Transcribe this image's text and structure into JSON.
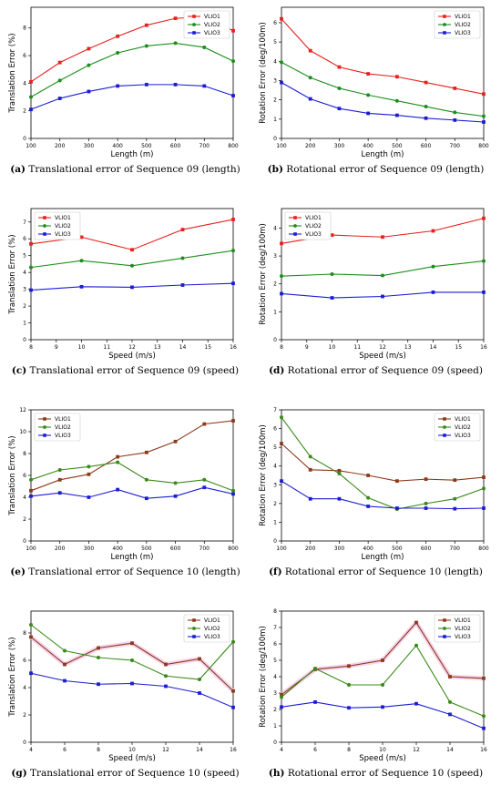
{
  "colors": {
    "set_a": [
      "#e8201f",
      "#1c8f1c",
      "#1c1cd6"
    ],
    "set_b": [
      "#8b3a1a",
      "#3a8a1a",
      "#1c1cd6"
    ],
    "highlight": "#f3c6e6"
  },
  "chart_data": [
    {
      "type": "line",
      "caption_letter": "(a)",
      "caption_text": " Translational error of Sequence 09 (length)",
      "xlabel": "Length (m)",
      "ylabel": "Translation Error (%)",
      "x": [
        100,
        200,
        300,
        400,
        500,
        600,
        700,
        800
      ],
      "xlim": [
        100,
        800
      ],
      "ylim": [
        0,
        9.5
      ],
      "xticks": [
        100,
        200,
        300,
        400,
        500,
        600,
        700,
        800
      ],
      "yticks": [
        0,
        2,
        4,
        6,
        8
      ],
      "legend": "top-right",
      "palette": "set_a",
      "series": [
        {
          "name": "VLIO1",
          "values": [
            4.1,
            5.5,
            6.5,
            7.4,
            8.2,
            8.7,
            8.8,
            7.8
          ]
        },
        {
          "name": "VLIO2",
          "values": [
            3.0,
            4.2,
            5.3,
            6.2,
            6.7,
            6.9,
            6.6,
            5.6
          ]
        },
        {
          "name": "VLIO3",
          "values": [
            2.1,
            2.9,
            3.4,
            3.8,
            3.9,
            3.9,
            3.8,
            3.1
          ]
        }
      ]
    },
    {
      "type": "line",
      "caption_letter": "(b)",
      "caption_text": " Rotational error of Sequence 09 (length)",
      "xlabel": "Length (m)",
      "ylabel": "Rotation Error (deg/100m)",
      "x": [
        100,
        200,
        300,
        400,
        500,
        600,
        700,
        800
      ],
      "xlim": [
        100,
        800
      ],
      "ylim": [
        0,
        6.8
      ],
      "xticks": [
        100,
        200,
        300,
        400,
        500,
        600,
        700,
        800
      ],
      "yticks": [
        0,
        1,
        2,
        3,
        4,
        5,
        6
      ],
      "legend": "top-right",
      "palette": "set_a",
      "series": [
        {
          "name": "VLIO1",
          "values": [
            6.2,
            4.55,
            3.7,
            3.35,
            3.2,
            2.9,
            2.6,
            2.3
          ]
        },
        {
          "name": "VLIO2",
          "values": [
            3.95,
            3.15,
            2.6,
            2.25,
            1.95,
            1.65,
            1.35,
            1.15
          ]
        },
        {
          "name": "VLIO3",
          "values": [
            2.9,
            2.05,
            1.55,
            1.3,
            1.2,
            1.05,
            0.95,
            0.85
          ]
        }
      ]
    },
    {
      "type": "line",
      "caption_letter": "(c)",
      "caption_text": " Translational error of Sequence 09 (speed)",
      "xlabel": "Speed (m/s)",
      "ylabel": "Translation Error (%)",
      "x": [
        8,
        10,
        12,
        14,
        16
      ],
      "xlim": [
        8,
        16
      ],
      "ylim": [
        0,
        7.8
      ],
      "xticks": [
        8,
        9,
        10,
        11,
        12,
        13,
        14,
        15,
        16
      ],
      "yticks": [
        0,
        1,
        2,
        3,
        4,
        5,
        6,
        7
      ],
      "legend": "top-left",
      "palette": "set_a",
      "series": [
        {
          "name": "VLIO1",
          "values": [
            5.7,
            6.1,
            5.35,
            6.55,
            7.15
          ]
        },
        {
          "name": "VLIO2",
          "values": [
            4.3,
            4.7,
            4.4,
            4.85,
            5.3
          ]
        },
        {
          "name": "VLIO3",
          "values": [
            2.95,
            3.15,
            3.12,
            3.25,
            3.35
          ]
        }
      ]
    },
    {
      "type": "line",
      "caption_letter": "(d)",
      "caption_text": " Rotational error of Sequence 09 (speed)",
      "xlabel": "Speed (m/s)",
      "ylabel": "Rotation Error (deg/100m)",
      "x": [
        8,
        10,
        12,
        14,
        16
      ],
      "xlim": [
        8,
        16
      ],
      "ylim": [
        0,
        4.7
      ],
      "xticks": [
        8,
        9,
        10,
        11,
        12,
        13,
        14,
        15,
        16
      ],
      "yticks": [
        0,
        1,
        2,
        3,
        4
      ],
      "legend": "top-left",
      "palette": "set_a",
      "series": [
        {
          "name": "VLIO1",
          "values": [
            3.45,
            3.75,
            3.68,
            3.9,
            4.35
          ]
        },
        {
          "name": "VLIO2",
          "values": [
            2.28,
            2.35,
            2.3,
            2.62,
            2.82
          ]
        },
        {
          "name": "VLIO3",
          "values": [
            1.65,
            1.5,
            1.55,
            1.7,
            1.7
          ]
        }
      ]
    },
    {
      "type": "line",
      "caption_letter": "(e)",
      "caption_text": " Translational error of Sequence 10 (length)",
      "xlabel": "Length (m)",
      "ylabel": "Translation Error (%)",
      "x": [
        100,
        200,
        300,
        400,
        500,
        600,
        700,
        800
      ],
      "xlim": [
        100,
        800
      ],
      "ylim": [
        0,
        12
      ],
      "xticks": [
        100,
        200,
        300,
        400,
        500,
        600,
        700,
        800
      ],
      "yticks": [
        0,
        2,
        4,
        6,
        8,
        10,
        12
      ],
      "legend": "top-left",
      "palette": "set_b",
      "series": [
        {
          "name": "VLIO1",
          "values": [
            4.6,
            5.6,
            6.1,
            7.7,
            8.1,
            9.1,
            10.7,
            11.0
          ]
        },
        {
          "name": "VLIO2",
          "values": [
            5.6,
            6.5,
            6.8,
            7.2,
            5.6,
            5.3,
            5.6,
            4.6
          ]
        },
        {
          "name": "VLIO3",
          "values": [
            4.1,
            4.4,
            4.0,
            4.7,
            3.9,
            4.1,
            4.9,
            4.3
          ]
        }
      ]
    },
    {
      "type": "line",
      "caption_letter": "(f)",
      "caption_text": " Rotational error of Sequence 10 (length)",
      "xlabel": "Length (m)",
      "ylabel": "Rotation Error (deg/100m)",
      "x": [
        100,
        200,
        300,
        400,
        500,
        600,
        700,
        800
      ],
      "xlim": [
        100,
        800
      ],
      "ylim": [
        0,
        7
      ],
      "xticks": [
        100,
        200,
        300,
        400,
        500,
        600,
        700,
        800
      ],
      "yticks": [
        0,
        1,
        2,
        3,
        4,
        5,
        6,
        7
      ],
      "legend": "top-right",
      "palette": "set_b",
      "series": [
        {
          "name": "VLIO1",
          "values": [
            5.2,
            3.8,
            3.75,
            3.5,
            3.2,
            3.3,
            3.25,
            3.4
          ]
        },
        {
          "name": "VLIO2",
          "values": [
            6.6,
            4.5,
            3.6,
            2.3,
            1.7,
            2.0,
            2.25,
            2.8
          ]
        },
        {
          "name": "VLIO3",
          "values": [
            3.2,
            2.25,
            2.25,
            1.85,
            1.75,
            1.75,
            1.72,
            1.75
          ]
        }
      ]
    },
    {
      "type": "line",
      "caption_letter": "(g)",
      "caption_text": " Translational error of Sequence 10 (speed)",
      "xlabel": "Speed (m/s)",
      "ylabel": "Translation Error (%)",
      "x": [
        4,
        6,
        8,
        10,
        12,
        14,
        16
      ],
      "xlim": [
        4,
        16
      ],
      "ylim": [
        0,
        9.6
      ],
      "xticks": [
        4,
        6,
        8,
        10,
        12,
        14,
        16
      ],
      "yticks": [
        0,
        2,
        4,
        6,
        8
      ],
      "legend": "top-right",
      "palette": "set_b",
      "series": [
        {
          "name": "VLIO1",
          "values": [
            7.7,
            5.7,
            6.9,
            7.25,
            5.7,
            6.1,
            3.75
          ]
        },
        {
          "name": "VLIO2",
          "values": [
            8.6,
            6.7,
            6.2,
            6.0,
            4.85,
            4.6,
            7.35
          ]
        },
        {
          "name": "VLIO3",
          "values": [
            5.05,
            4.5,
            4.25,
            4.3,
            4.1,
            3.6,
            2.55
          ]
        }
      ]
    },
    {
      "type": "line",
      "caption_letter": "(h)",
      "caption_text": " Rotational error of Sequence 10 (speed)",
      "xlabel": "Speed (m/s)",
      "ylabel": "Rotation Error (deg/100m)",
      "x": [
        4,
        6,
        8,
        10,
        12,
        14,
        16
      ],
      "xlim": [
        4,
        16
      ],
      "ylim": [
        0,
        8
      ],
      "xticks": [
        4,
        6,
        8,
        10,
        12,
        14,
        16
      ],
      "yticks": [
        0,
        1,
        2,
        3,
        4,
        5,
        6,
        7,
        8
      ],
      "legend": "top-right",
      "palette": "set_b",
      "series": [
        {
          "name": "VLIO1",
          "values": [
            2.9,
            4.45,
            4.65,
            5.0,
            7.3,
            4.0,
            3.9
          ]
        },
        {
          "name": "VLIO2",
          "values": [
            2.75,
            4.5,
            3.5,
            3.5,
            5.9,
            2.45,
            1.6
          ]
        },
        {
          "name": "VLIO3",
          "values": [
            2.15,
            2.45,
            2.1,
            2.15,
            2.35,
            1.7,
            0.85
          ]
        }
      ]
    }
  ]
}
